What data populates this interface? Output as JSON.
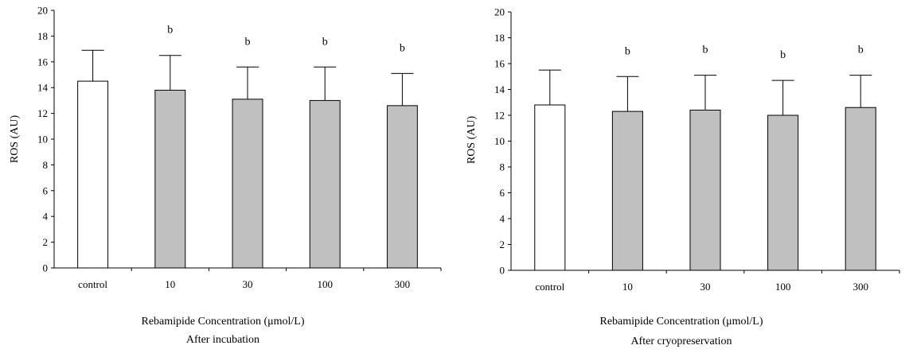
{
  "chart_data": [
    {
      "type": "bar",
      "subtitle": "After incubation",
      "xlabel": "Rebamipide Concentration (μmol/L)",
      "ylabel": "ROS (AU)",
      "ylim": [
        0,
        20
      ],
      "yticks": [
        0,
        2,
        4,
        6,
        8,
        10,
        12,
        14,
        16,
        18,
        20
      ],
      "categories": [
        "control",
        "10",
        "30",
        "100",
        "300"
      ],
      "values": [
        14.5,
        13.8,
        13.1,
        13.0,
        12.6
      ],
      "errors": [
        2.4,
        2.7,
        2.5,
        2.6,
        2.5
      ],
      "annotations": [
        "",
        "b",
        "b",
        "b",
        "b"
      ],
      "bar_colors": [
        "#ffffff",
        "#c0c0c0",
        "#c0c0c0",
        "#c0c0c0",
        "#c0c0c0"
      ],
      "grid": false
    },
    {
      "type": "bar",
      "subtitle": "After cryopreservation",
      "xlabel": "Rebamipide Concentration (μmol/L)",
      "ylabel": "ROS (AU)",
      "ylim": [
        0,
        20
      ],
      "yticks": [
        0,
        2,
        4,
        6,
        8,
        10,
        12,
        14,
        16,
        18,
        20
      ],
      "categories": [
        "control",
        "10",
        "30",
        "100",
        "300"
      ],
      "values": [
        12.8,
        12.3,
        12.4,
        12.0,
        12.6
      ],
      "errors": [
        2.7,
        2.7,
        2.7,
        2.7,
        2.5
      ],
      "annotations": [
        "",
        "b",
        "b",
        "b",
        "b"
      ],
      "bar_colors": [
        "#ffffff",
        "#c0c0c0",
        "#c0c0c0",
        "#c0c0c0",
        "#c0c0c0"
      ],
      "grid": false
    }
  ]
}
